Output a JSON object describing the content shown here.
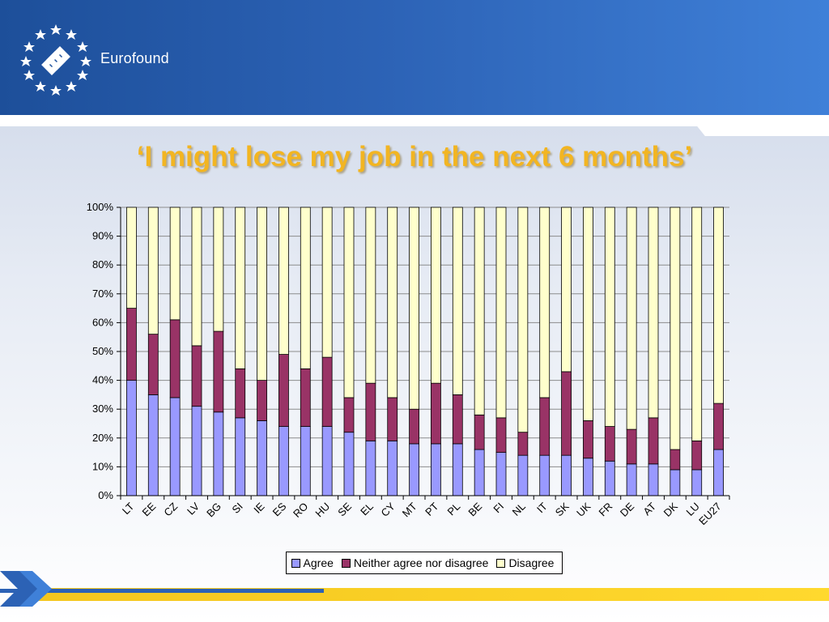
{
  "header": {
    "logo_text": "Eurofound"
  },
  "slide": {
    "title": "‘I might lose my job in the next 6 months’"
  },
  "colors": {
    "agree": "#9999ff",
    "neither": "#993366",
    "disagree": "#ffffcc",
    "title": "#f2b522"
  },
  "legend": [
    "Agree",
    "Neither agree nor disagree",
    "Disagree"
  ],
  "chart_data": {
    "type": "bar",
    "stacked": true,
    "percent_scale": true,
    "categories": [
      "LT",
      "EE",
      "CZ",
      "LV",
      "BG",
      "SI",
      "IE",
      "ES",
      "RO",
      "HU",
      "SE",
      "EL",
      "CY",
      "MT",
      "PT",
      "PL",
      "BE",
      "FI",
      "NL",
      "IT",
      "SK",
      "UK",
      "FR",
      "DE",
      "AT",
      "DK",
      "LU",
      "EU27"
    ],
    "series": [
      {
        "name": "Agree",
        "values": [
          40,
          35,
          34,
          31,
          29,
          27,
          26,
          24,
          24,
          24,
          22,
          19,
          19,
          18,
          18,
          18,
          16,
          15,
          14,
          14,
          14,
          13,
          12,
          11,
          11,
          9,
          9,
          16
        ]
      },
      {
        "name": "Neither agree nor disagree",
        "values": [
          25,
          21,
          27,
          21,
          28,
          17,
          14,
          25,
          20,
          24,
          12,
          20,
          15,
          12,
          21,
          17,
          12,
          12,
          8,
          20,
          29,
          13,
          12,
          12,
          16,
          7,
          10,
          16
        ]
      },
      {
        "name": "Disagree",
        "values": [
          35,
          44,
          39,
          48,
          43,
          56,
          60,
          51,
          56,
          52,
          66,
          61,
          66,
          70,
          61,
          65,
          72,
          73,
          78,
          66,
          57,
          74,
          76,
          77,
          73,
          84,
          81,
          68
        ]
      }
    ],
    "yticks": [
      "0%",
      "10%",
      "20%",
      "30%",
      "40%",
      "50%",
      "60%",
      "70%",
      "80%",
      "90%",
      "100%"
    ],
    "ylim": [
      0,
      100
    ],
    "grid": true,
    "legend_position": "bottom"
  }
}
